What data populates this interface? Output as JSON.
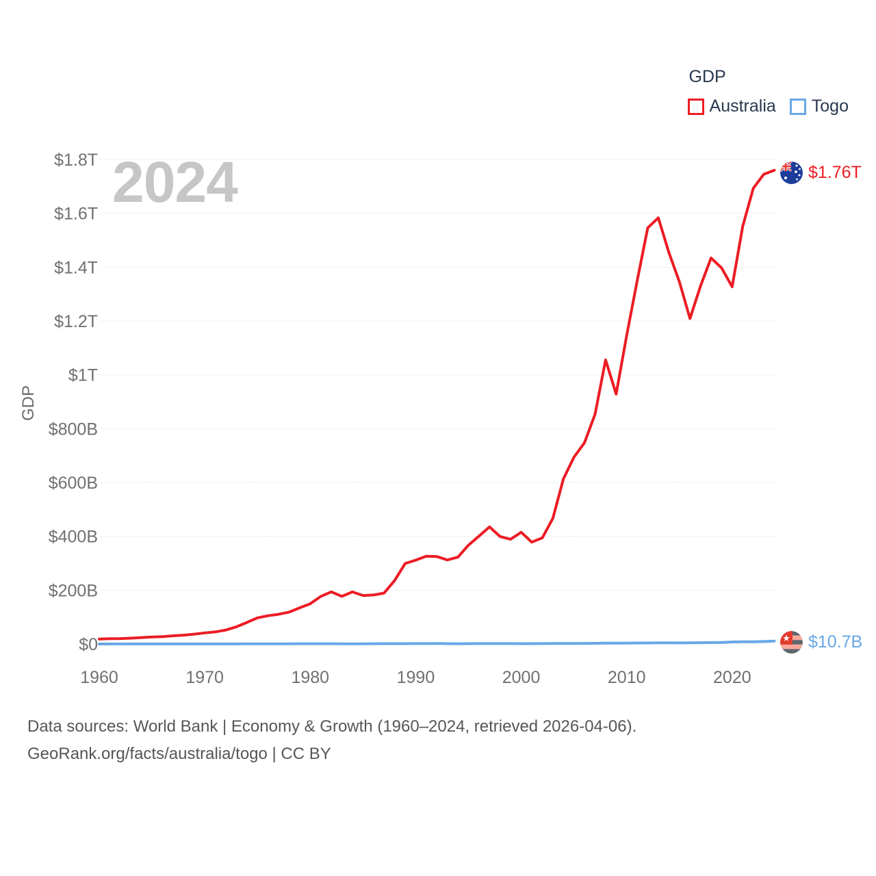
{
  "legend": {
    "title": "GDP",
    "items": [
      {
        "label": "Australia",
        "color": "#ec1c24"
      },
      {
        "label": "Togo",
        "color": "#68a7e5"
      }
    ]
  },
  "watermark": "2024",
  "y_axis_title": "GDP",
  "end_labels": {
    "australia": {
      "value": "$1.76T",
      "flag": "australia-flag"
    },
    "togo": {
      "value": "$10.7B",
      "flag": "togo-flag"
    }
  },
  "footer": {
    "line1": "Data sources: World Bank | Economy & Growth (1960–2024, retrieved 2026-04-06).",
    "line2": "GeoRank.org/facts/australia/togo | CC BY"
  },
  "chart_data": {
    "type": "line",
    "title": "GDP",
    "ylabel": "GDP",
    "xlabel": "",
    "grid": true,
    "legend_position": "top-right",
    "y_unit": "USD billions",
    "ylim_b": [
      0,
      1800
    ],
    "y_ticks": [
      {
        "value_b": 0,
        "label": "$0"
      },
      {
        "value_b": 200,
        "label": "$200B"
      },
      {
        "value_b": 400,
        "label": "$400B"
      },
      {
        "value_b": 600,
        "label": "$600B"
      },
      {
        "value_b": 800,
        "label": "$800B"
      },
      {
        "value_b": 1000,
        "label": "$1T"
      },
      {
        "value_b": 1200,
        "label": "$1.2T"
      },
      {
        "value_b": 1400,
        "label": "$1.4T"
      },
      {
        "value_b": 1600,
        "label": "$1.6T"
      },
      {
        "value_b": 1800,
        "label": "$1.8T"
      }
    ],
    "x_ticks": [
      1960,
      1970,
      1980,
      1990,
      2000,
      2010,
      2020
    ],
    "years": [
      1960,
      1961,
      1962,
      1963,
      1964,
      1965,
      1966,
      1967,
      1968,
      1969,
      1970,
      1971,
      1972,
      1973,
      1974,
      1975,
      1976,
      1977,
      1978,
      1979,
      1980,
      1981,
      1982,
      1983,
      1984,
      1985,
      1986,
      1987,
      1988,
      1989,
      1990,
      1991,
      1992,
      1993,
      1994,
      1995,
      1996,
      1997,
      1998,
      1999,
      2000,
      2001,
      2002,
      2003,
      2004,
      2005,
      2006,
      2007,
      2008,
      2009,
      2010,
      2011,
      2012,
      2013,
      2014,
      2015,
      2016,
      2017,
      2018,
      2019,
      2020,
      2021,
      2022,
      2023,
      2024
    ],
    "series": [
      {
        "name": "Australia",
        "color": "#ec1c24",
        "end_value_label": "$1.76T",
        "values_billions_usd": [
          18.6,
          19.7,
          20.1,
          21.5,
          23.8,
          26.0,
          27.5,
          30.4,
          32.9,
          36.6,
          41.3,
          45.1,
          51.9,
          63.9,
          80.0,
          97.1,
          105.0,
          110.3,
          118.4,
          134.5,
          149.6,
          176.6,
          193.8,
          177.0,
          193.4,
          180.2,
          182.0,
          189.1,
          235.8,
          299.1,
          311.4,
          326.0,
          325.0,
          312.2,
          322.5,
          367.2,
          400.9,
          435.0,
          399.2,
          389.2,
          415.2,
          378.3,
          394.3,
          466.5,
          612.9,
          693.9,
          747.4,
          853.8,
          1055.3,
          928.1,
          1146.1,
          1350.0,
          1546.2,
          1583.2,
          1454.0,
          1345.0,
          1209.0,
          1330.0,
          1434.0,
          1397.0,
          1327.0,
          1552.0,
          1693.0,
          1745.0,
          1760.0
        ]
      },
      {
        "name": "Togo",
        "color": "#68a7e5",
        "end_value_label": "$10.7B",
        "values_billions_usd": [
          0.12,
          0.13,
          0.13,
          0.14,
          0.16,
          0.19,
          0.22,
          0.23,
          0.24,
          0.25,
          0.25,
          0.28,
          0.3,
          0.35,
          0.52,
          0.61,
          0.58,
          0.69,
          0.78,
          0.89,
          1.14,
          0.97,
          0.9,
          0.84,
          0.78,
          0.81,
          1.0,
          1.15,
          1.28,
          1.32,
          1.63,
          1.63,
          1.69,
          1.35,
          0.98,
          1.31,
          1.45,
          1.5,
          1.49,
          1.48,
          1.29,
          1.33,
          1.48,
          1.66,
          1.94,
          2.12,
          2.2,
          2.52,
          3.16,
          3.37,
          3.43,
          3.87,
          3.92,
          4.34,
          4.58,
          4.18,
          4.5,
          4.8,
          5.36,
          5.49,
          7.57,
          8.41,
          8.13,
          9.17,
          10.7
        ]
      }
    ]
  },
  "style": {
    "grid_color": "#e4e4e4",
    "tick_label_color": "#707070",
    "line_width": 4
  }
}
